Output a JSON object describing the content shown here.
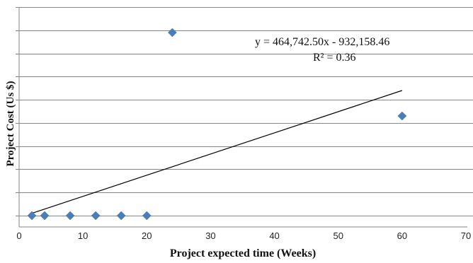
{
  "chart_data": {
    "type": "scatter",
    "xlabel": "Project  expected time  (Weeks)",
    "ylabel": "Project Cost (Us $)",
    "xlim": [
      0,
      70
    ],
    "ylim": [
      0,
      9
    ],
    "x_ticks": [
      "0",
      "10",
      "20",
      "30",
      "40",
      "50",
      "60",
      "70"
    ],
    "y_tick_labels_shown": false,
    "grid": "horizontal",
    "marker": "diamond",
    "marker_color": "#4a7ebb",
    "series": [
      {
        "points": [
          {
            "x": 2,
            "y": 0
          },
          {
            "x": 4,
            "y": 0
          },
          {
            "x": 8,
            "y": 0
          },
          {
            "x": 12,
            "y": 0
          },
          {
            "x": 16,
            "y": 0
          },
          {
            "x": 20,
            "y": 0
          },
          {
            "x": 24,
            "y": 7.9
          },
          {
            "x": 60,
            "y": 4.3
          }
        ]
      }
    ],
    "trendline": {
      "type": "linear",
      "x_range": [
        2,
        60
      ],
      "y_at_start": 0.1,
      "y_at_end": 5.4
    },
    "annotations": {
      "equation": "y = 464,742.50x - 932,158.46",
      "r_squared": "R² = 0.36"
    }
  }
}
